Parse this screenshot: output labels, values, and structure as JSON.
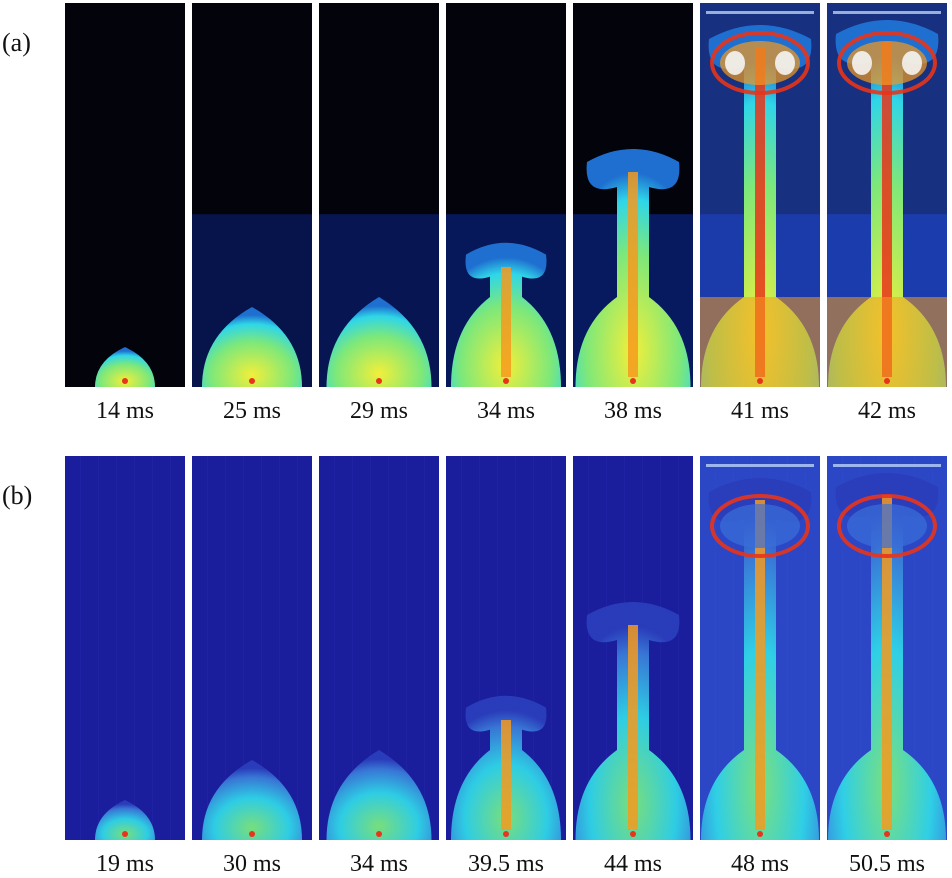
{
  "figure": {
    "rows": [
      {
        "label": "(a)",
        "palette": "dark",
        "frames": [
          {
            "time": "14 ms",
            "stage": 1
          },
          {
            "time": "25 ms",
            "stage": 2
          },
          {
            "time": "29 ms",
            "stage": 3
          },
          {
            "time": "34 ms",
            "stage": 4
          },
          {
            "time": "38 ms",
            "stage": 5
          },
          {
            "time": "41 ms",
            "stage": 6
          },
          {
            "time": "42 ms",
            "stage": 7
          }
        ]
      },
      {
        "label": "(b)",
        "palette": "blue",
        "frames": [
          {
            "time": "19 ms",
            "stage": 1
          },
          {
            "time": "30 ms",
            "stage": 2
          },
          {
            "time": "34 ms",
            "stage": 3
          },
          {
            "time": "39.5 ms",
            "stage": 4
          },
          {
            "time": "44 ms",
            "stage": 5
          },
          {
            "time": "48 ms",
            "stage": 6
          },
          {
            "time": "50.5 ms",
            "stage": 7
          }
        ]
      }
    ],
    "colors": {
      "background_dark": "#02030b",
      "background_blue": "#1a1d9c",
      "cyan": "#2fd6e8",
      "green": "#7de87a",
      "yellow": "#f2ef3a",
      "orange": "#f59a1e",
      "red": "#e8341a",
      "white": "#f4f4f4"
    }
  }
}
